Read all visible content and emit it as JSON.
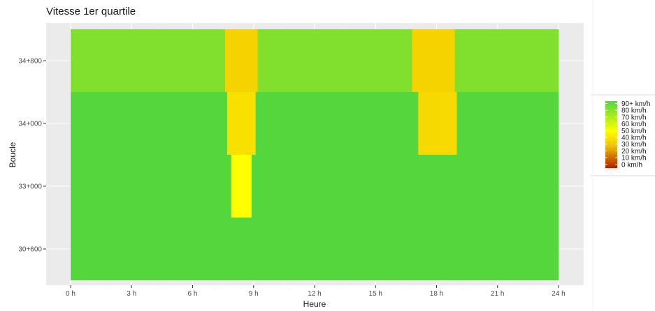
{
  "chart_data": {
    "type": "heatmap",
    "title": "Vitesse 1er quartile",
    "xlabel": "Heure",
    "ylabel": "Boucle",
    "xlim": [
      0,
      24
    ],
    "x_ticks": [
      {
        "value": 0,
        "label": "0 h"
      },
      {
        "value": 3,
        "label": "3 h"
      },
      {
        "value": 6,
        "label": "6 h"
      },
      {
        "value": 9,
        "label": "9 h"
      },
      {
        "value": 12,
        "label": "12 h"
      },
      {
        "value": 15,
        "label": "15 h"
      },
      {
        "value": 18,
        "label": "18 h"
      },
      {
        "value": 21,
        "label": "21 h"
      },
      {
        "value": 24,
        "label": "24 h"
      }
    ],
    "y_categories": [
      "30+600",
      "33+000",
      "34+000",
      "34+800"
    ],
    "grid": true,
    "legend_position": "right",
    "legend_labels": [
      "90+ km/h",
      "80 km/h",
      "70 km/h",
      "60 km/h",
      "50 km/h",
      "40 km/h",
      "30 km/h",
      "20 km/h",
      "10 km/h",
      "0 km/h"
    ],
    "color_scale": {
      "0": "#b22000",
      "30": "#f0c000",
      "50": "#ffff00",
      "90": "#55d63c"
    },
    "cells": [
      {
        "row": "34+800",
        "x0": 0,
        "x1": 7.6,
        "value": 80
      },
      {
        "row": "34+800",
        "x0": 7.6,
        "x1": 9.2,
        "value": 36
      },
      {
        "row": "34+800",
        "x0": 9.2,
        "x1": 16.8,
        "value": 80
      },
      {
        "row": "34+800",
        "x0": 16.8,
        "x1": 18.9,
        "value": 36
      },
      {
        "row": "34+800",
        "x0": 18.9,
        "x1": 24,
        "value": 80
      },
      {
        "row": "34+000",
        "x0": 0,
        "x1": 7.7,
        "value": 90
      },
      {
        "row": "34+000",
        "x0": 7.7,
        "x1": 9.1,
        "value": 40
      },
      {
        "row": "34+000",
        "x0": 9.1,
        "x1": 17.1,
        "value": 90
      },
      {
        "row": "34+000",
        "x0": 17.1,
        "x1": 19.0,
        "value": 38
      },
      {
        "row": "34+000",
        "x0": 19.0,
        "x1": 24,
        "value": 90
      },
      {
        "row": "33+000",
        "x0": 0,
        "x1": 7.9,
        "value": 90
      },
      {
        "row": "33+000",
        "x0": 7.9,
        "x1": 8.9,
        "value": 50
      },
      {
        "row": "33+000",
        "x0": 8.9,
        "x1": 24,
        "value": 90
      },
      {
        "row": "30+600",
        "x0": 0,
        "x1": 24,
        "value": 90
      }
    ]
  }
}
